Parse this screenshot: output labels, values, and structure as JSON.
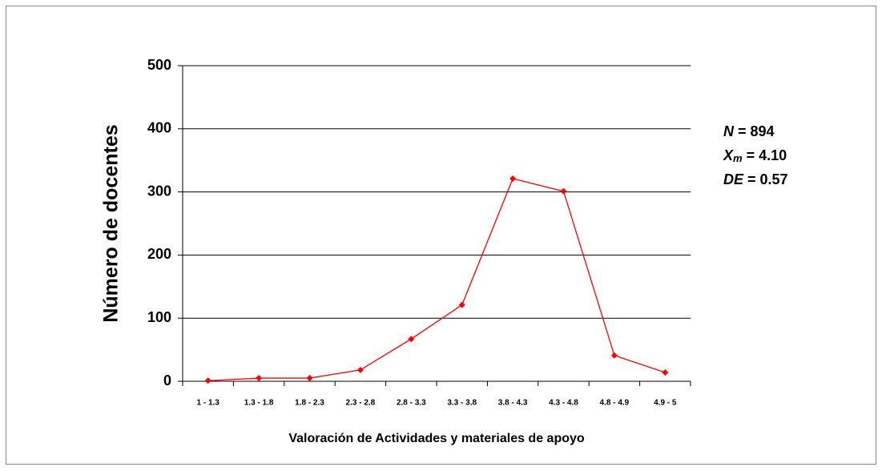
{
  "chart_data": {
    "type": "line",
    "y_label": "Número de docentes",
    "x_label": "Valoración de Actividades y materiales de apoyo",
    "categories": [
      "1 - 1.3",
      "1.3 - 1.8",
      "1.8 - 2.3",
      "2.3 - 2.8",
      "2.8 - 3.3",
      "3.3 - 3.8",
      "3.8 - 4.3",
      "4.3 - 4.8",
      "4.8 - 4.9",
      "4.9 - 5"
    ],
    "series": [
      {
        "color": "#ff0000",
        "values": [
          1,
          5,
          5,
          18,
          67,
          121,
          321,
          301,
          41,
          14
        ]
      }
    ],
    "ylim": [
      0,
      500
    ],
    "yticks": [
      0,
      100,
      200,
      300,
      400,
      500
    ],
    "grid": true,
    "annotations": [
      {
        "symbol": "N",
        "text": "= 894"
      },
      {
        "symbol": "X",
        "subscript": "m",
        "text": "= 4.10"
      },
      {
        "symbol": "DE",
        "text": "= 0.57"
      }
    ]
  }
}
